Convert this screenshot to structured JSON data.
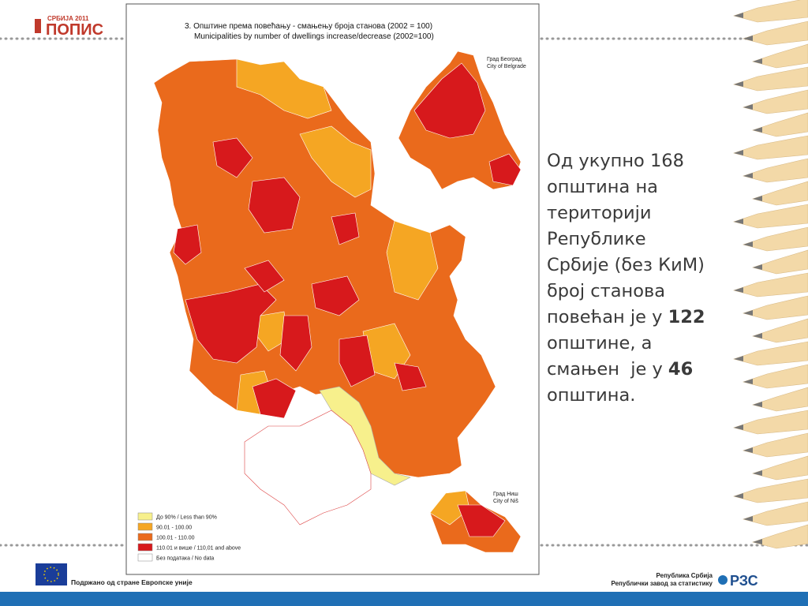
{
  "logo": {
    "top": "СРБИЈА 2011",
    "main": "ПОПИС"
  },
  "map": {
    "title_sr": "3. Општине према повећању - смањењу броја станова (2002 = 100)",
    "title_en": "Municipalities by number of dwellings increase/decrease (2002=100)",
    "inset_belgrade": [
      "Град Београд",
      "City of Belgrade"
    ],
    "inset_nis": [
      "Град Ниш",
      "City of Niš"
    ],
    "legend": [
      {
        "label": "До 90% / Less than 90%",
        "color": "#f7f08c"
      },
      {
        "label": "90.01 - 100.00",
        "color": "#f5a623"
      },
      {
        "label": "100.01 - 110.00",
        "color": "#ea6a1c"
      },
      {
        "label": "110.01 и више / 110,01 and above",
        "color": "#d7191c"
      },
      {
        "label": "Без података / No data",
        "color": "#ffffff"
      }
    ]
  },
  "paragraph": [
    "Од укупно 168",
    "општина на",
    "територији",
    "Републике",
    "Србије (без КиМ)",
    "број станова",
    {
      "text": "повећан је у ",
      "strong": "122"
    },
    "општине, а",
    {
      "text": "смањен  је у ",
      "strong": "46"
    },
    "општина."
  ],
  "footer": {
    "left": "Подржано од стране Европске уније",
    "right_1": "Република Србија",
    "right_2": "Републички завод за статистику",
    "logo": "РЗС"
  }
}
